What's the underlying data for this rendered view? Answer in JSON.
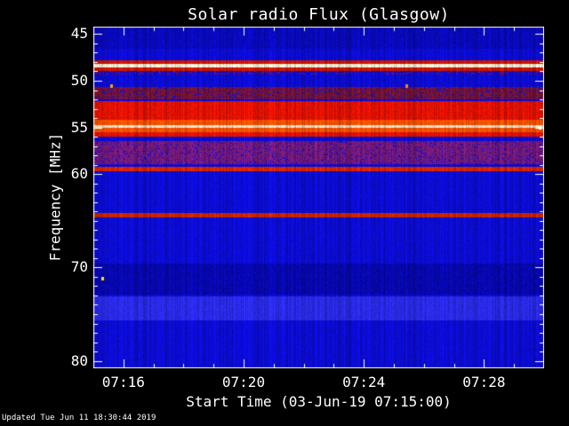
{
  "footer": {
    "updated": "Updated Tue Jun 11 18:30:44 2019"
  },
  "chart_data": {
    "type": "heatmap",
    "title": "Solar radio Flux (Glasgow)",
    "xlabel": "Start Time (03-Jun-19 07:15:00)",
    "ylabel": "Frequency [MHz]",
    "x_total_minutes": 15,
    "x_start": "07:15",
    "x_end": "07:30",
    "x_ticks": [
      {
        "label": "07:16",
        "minute": 1
      },
      {
        "label": "07:20",
        "minute": 5
      },
      {
        "label": "07:24",
        "minute": 9
      },
      {
        "label": "07:28",
        "minute": 13
      }
    ],
    "y_ticks": [
      45,
      50,
      55,
      60,
      70,
      80
    ],
    "y_range": [
      44.2,
      80.8
    ],
    "y_axis_inverted": true,
    "grid": false,
    "legend": "none",
    "axis_color": "#ffffff",
    "background_color": "#0c0cd8",
    "colormap": "quiet blue continuum with red/white horizontal interference and emission bands",
    "bands": [
      {
        "f0": 44.2,
        "f1": 46.6,
        "color": "#0909bc",
        "density": 0.85,
        "desc": "mottled darker blue region at top of spectrum"
      },
      {
        "f0": 47.85,
        "f1": 48.15,
        "color": "#d01600",
        "density": 1,
        "desc": "red fringe above bright RFI line"
      },
      {
        "f0": 48.15,
        "f1": 48.62,
        "color": "#fff6d8",
        "density": 1,
        "desc": "bright white-yellow RFI line near 48.4 MHz"
      },
      {
        "f0": 48.62,
        "f1": 48.95,
        "color": "#d01600",
        "density": 1,
        "desc": "red fringe below bright RFI line"
      },
      {
        "f0": 49.0,
        "f1": 49.35,
        "color": "#b41200",
        "density": 0.16,
        "desc": "intermittent red spikes just below RFI line"
      },
      {
        "f0": 50.7,
        "f1": 51.95,
        "color": "#801428",
        "density": 0.8,
        "desc": "dark red interference band near 51 MHz"
      },
      {
        "f0": 52.2,
        "f1": 54.2,
        "color": "#e81200",
        "density": 1,
        "desc": "strong red emission band"
      },
      {
        "f0": 54.2,
        "f1": 54.72,
        "color": "#ff5200",
        "density": 1,
        "desc": "hot orange core of emission band"
      },
      {
        "f0": 54.72,
        "f1": 55.06,
        "color": "#ffdfc0",
        "density": 1,
        "desc": "white-hot line near 54.9 MHz"
      },
      {
        "f0": 55.06,
        "f1": 55.5,
        "color": "#ff5200",
        "density": 1,
        "desc": "hot orange core, lower part"
      },
      {
        "f0": 55.5,
        "f1": 56.0,
        "color": "#e81200",
        "density": 1,
        "desc": "red band lower edge"
      },
      {
        "f0": 56.45,
        "f1": 58.9,
        "color": "#7c1a78",
        "density": 0.85,
        "desc": "purple mottled band 56.5-59 MHz"
      },
      {
        "f0": 59.25,
        "f1": 59.65,
        "color": "#e02400",
        "density": 1,
        "desc": "thin red line near 59.4 MHz"
      },
      {
        "f0": 64.2,
        "f1": 64.68,
        "color": "#cc2600",
        "density": 1,
        "desc": "thin red line near 64.4 MHz"
      },
      {
        "f0": 69.6,
        "f1": 72.9,
        "color": "#0707ae",
        "density": 0.9,
        "desc": "darker blue region 70-73 MHz"
      },
      {
        "f0": 73.1,
        "f1": 75.7,
        "color": "#2b2bee",
        "density": 1,
        "desc": "lighter blue band near 74 MHz"
      }
    ],
    "point_events": [
      {
        "time_min": 0.6,
        "freq": 50.55,
        "color": "#ffa200",
        "desc": "orange point burst near 07:15.6"
      },
      {
        "time_min": 10.4,
        "freq": 50.55,
        "color": "#ff8a00",
        "desc": "orange point burst near 07:25.4"
      },
      {
        "time_min": 0.3,
        "freq": 71.2,
        "color": "#ffe400",
        "desc": "yellow point burst near 07:15.3"
      },
      {
        "time_min": 14.85,
        "freq": 55.0,
        "color": "#ffffff",
        "desc": "white mark at right edge of hot band"
      }
    ]
  }
}
